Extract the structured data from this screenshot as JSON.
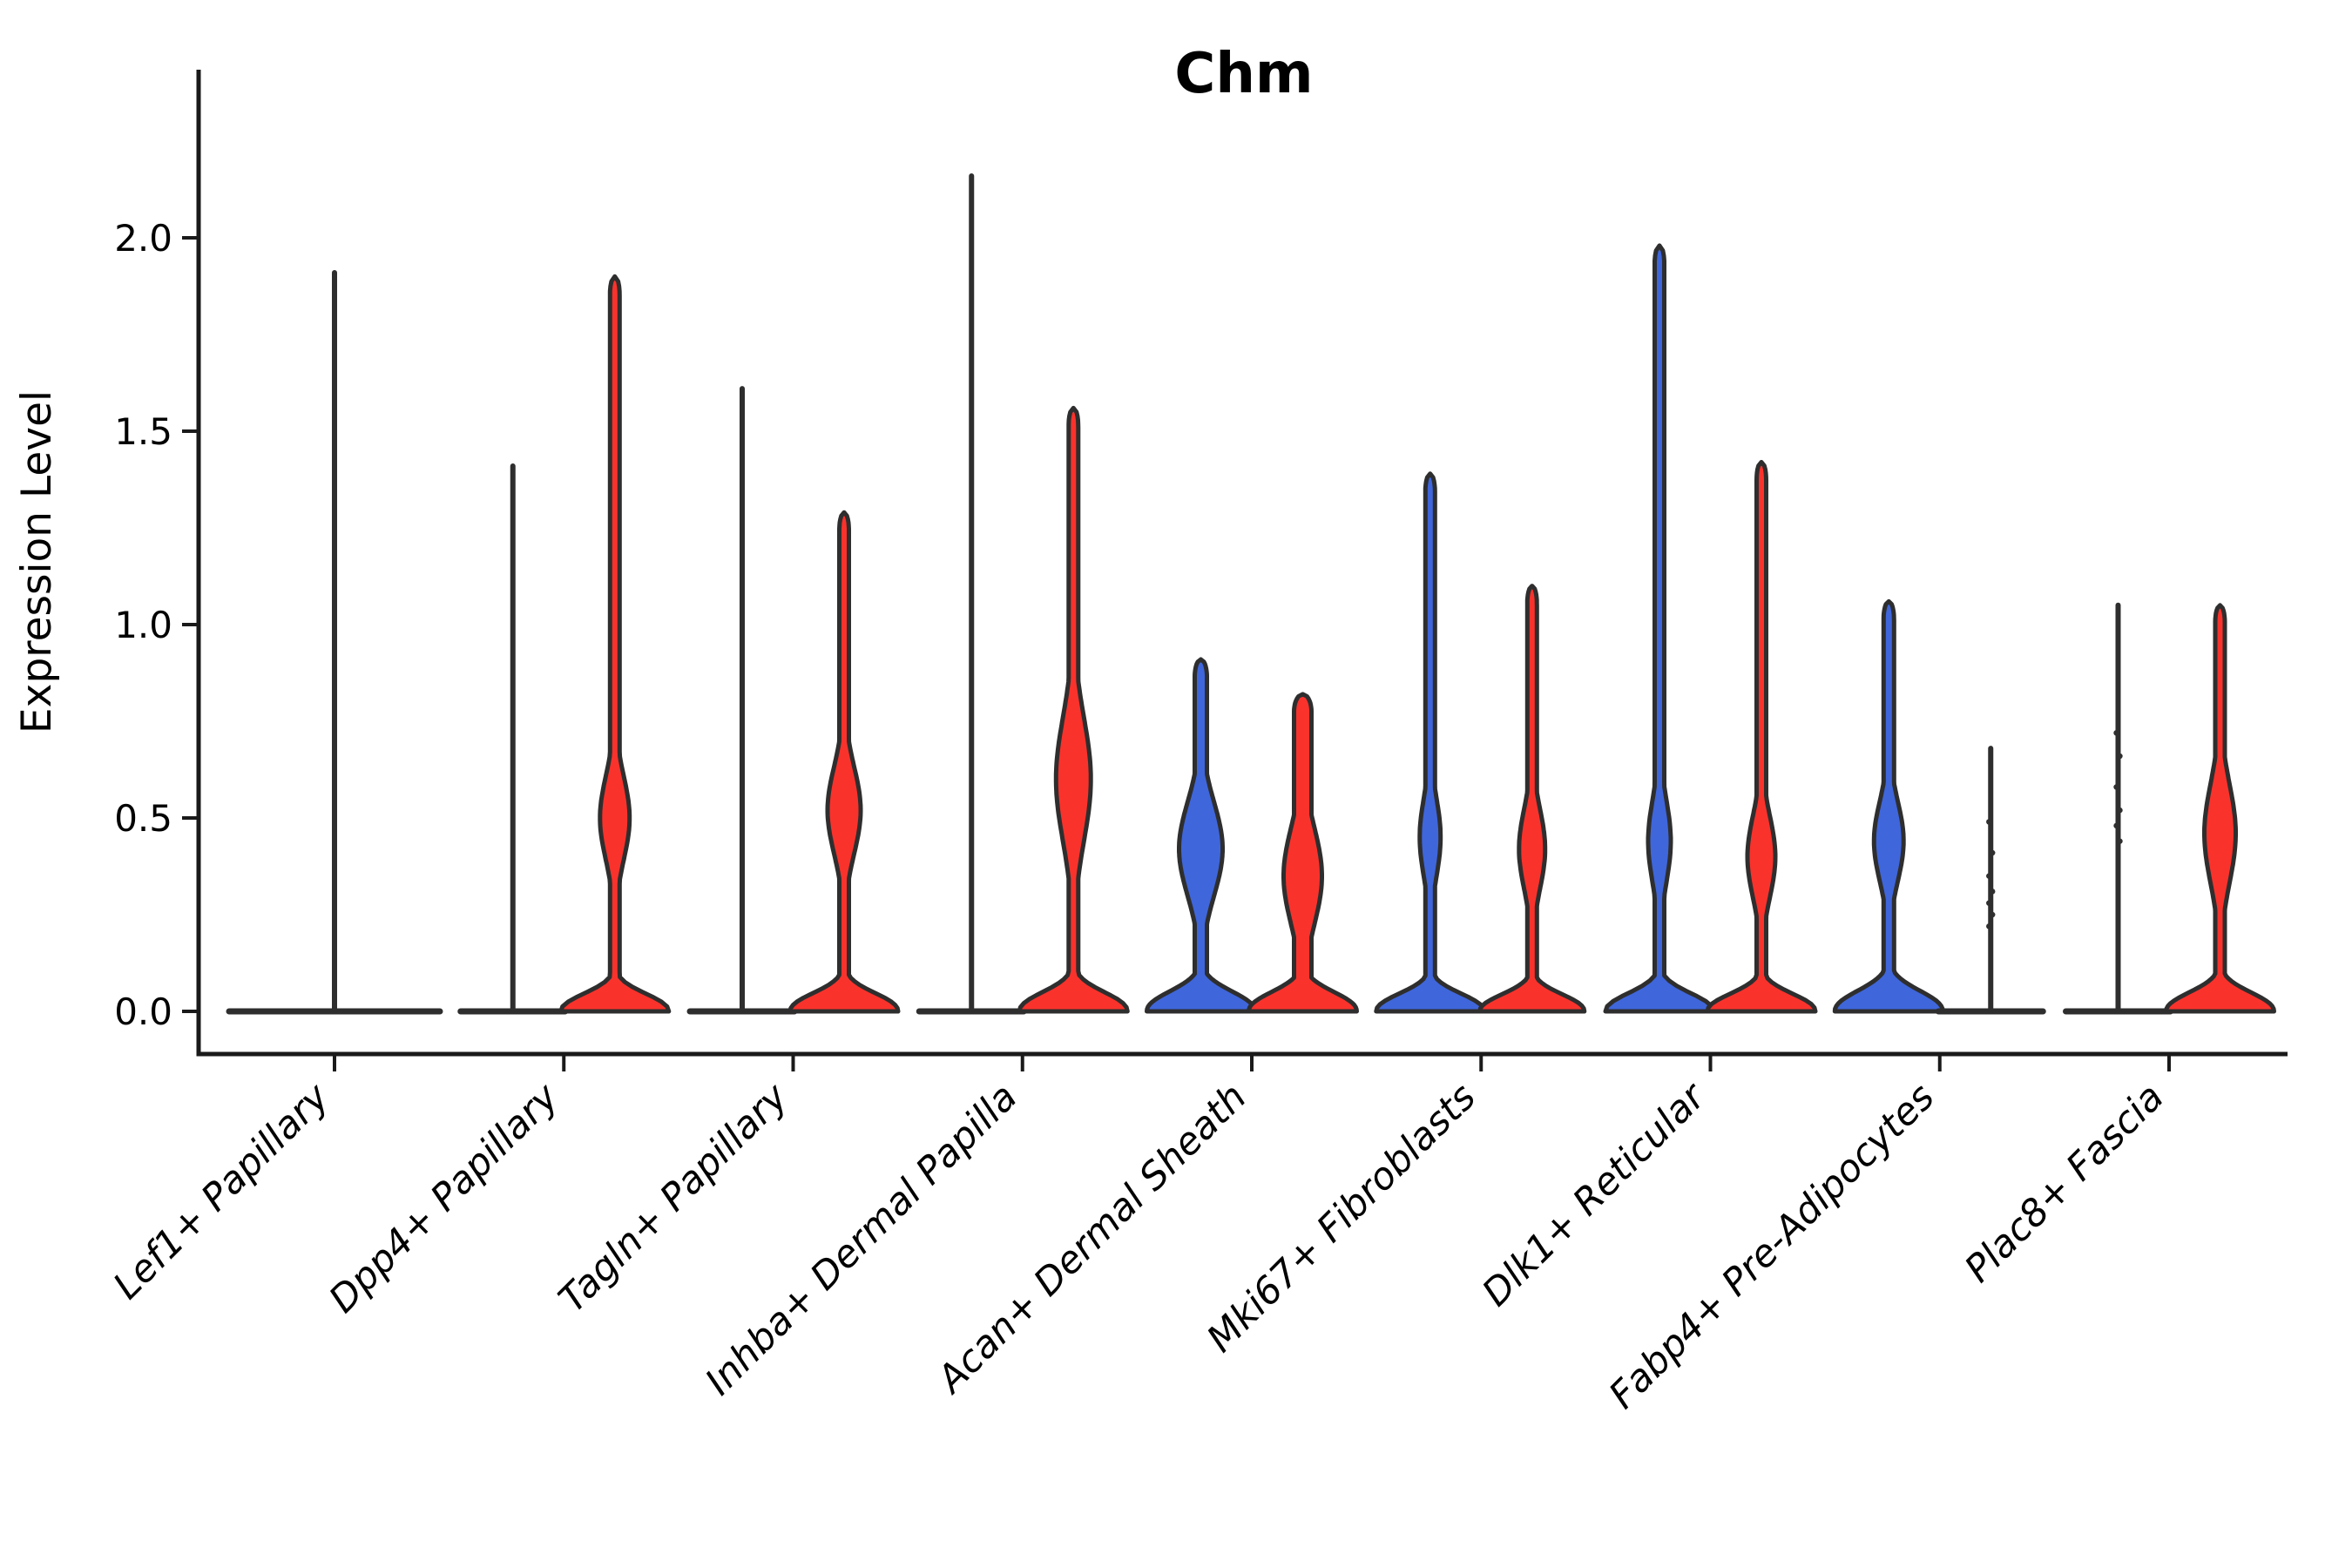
{
  "title": "Chm",
  "y_axis": {
    "label": "Expression Level",
    "tick_labels": [
      "0.0",
      "0.5",
      "1.0",
      "1.5",
      "2.0"
    ],
    "tick_values": [
      0.0,
      0.5,
      1.0,
      1.5,
      2.0
    ]
  },
  "colors": {
    "blue": "#3F66DB",
    "red": "#FA322C",
    "outline": "#2E2E2E",
    "axis": "#1A1A1A",
    "text": "#000000"
  },
  "chart_data": {
    "type": "violin",
    "title": "Chm",
    "xlabel": "",
    "ylabel": "Expression Level",
    "ylim": [
      -0.11,
      2.45
    ],
    "grid": false,
    "legend": "none",
    "categories": [
      "Lef1+ Papillary",
      "Dpp4+ Papillary",
      "Tagln+ Papillary",
      "Inhba+ Dermal Papilla",
      "Acan+ Dermal Sheath",
      "Mki67+ Fibroblasts",
      "Dlk1+ Reticular",
      "Fabp4+ Pre-Adipocytes",
      "Plac8+ Fascia"
    ],
    "groups": [
      {
        "label": "Lef1+ Papillary",
        "violins": [
          {
            "hue": "single",
            "type": "line",
            "max": 1.91,
            "offset": 0,
            "base_halfwidth": 121,
            "dots": []
          }
        ]
      },
      {
        "label": "Dpp4+ Papillary",
        "violins": [
          {
            "hue": "blue",
            "type": "line",
            "max": 1.41,
            "offset": -58.5,
            "base_halfwidth": 60,
            "dots": []
          },
          {
            "hue": "red",
            "type": "full",
            "max": 1.9,
            "offset": 58.5,
            "base_halfwidth": 62,
            "base_sigma": 0.06,
            "stem": 5.5,
            "bulge": {
              "peak": 0.5,
              "lo": 0.27,
              "hi": 0.76,
              "halfwidth": 17
            }
          }
        ]
      },
      {
        "label": "Tagln+ Papillary",
        "violins": [
          {
            "hue": "blue",
            "type": "line",
            "max": 1.61,
            "offset": -58.5,
            "base_halfwidth": 60,
            "dots": []
          },
          {
            "hue": "red",
            "type": "full",
            "max": 1.29,
            "offset": 58.5,
            "base_halfwidth": 62,
            "base_sigma": 0.062,
            "stem": 5.5,
            "bulge": {
              "peak": 0.52,
              "lo": 0.27,
              "hi": 0.78,
              "halfwidth": 19
            }
          }
        ]
      },
      {
        "label": "Inhba+ Dermal Papilla",
        "violins": [
          {
            "hue": "blue",
            "type": "line",
            "max": 2.16,
            "offset": -58.5,
            "base_halfwidth": 60,
            "dots": []
          },
          {
            "hue": "red",
            "type": "full",
            "max": 1.56,
            "offset": 58.5,
            "base_halfwidth": 62,
            "base_sigma": 0.065,
            "stem": 5.5,
            "bulge": {
              "peak": 0.6,
              "lo": 0.28,
              "hi": 1.0,
              "halfwidth": 20
            }
          }
        ]
      },
      {
        "label": "Acan+ Dermal Sheath",
        "violins": [
          {
            "hue": "blue",
            "type": "full",
            "max": 0.91,
            "offset": -58.5,
            "base_halfwidth": 62,
            "base_sigma": 0.068,
            "stem": 7,
            "bulge": {
              "peak": 0.42,
              "lo": 0.13,
              "hi": 0.68,
              "halfwidth": 25
            }
          },
          {
            "hue": "red",
            "type": "full",
            "max": 0.82,
            "offset": 58.5,
            "base_halfwidth": 62,
            "base_sigma": 0.066,
            "stem": 10,
            "bulge": {
              "peak": 0.35,
              "lo": 0.05,
              "hi": 0.62,
              "halfwidth": 22
            }
          }
        ]
      },
      {
        "label": "Mki67+ Fibroblasts",
        "violins": [
          {
            "hue": "blue",
            "type": "full",
            "max": 1.39,
            "offset": -58.5,
            "base_halfwidth": 62,
            "base_sigma": 0.06,
            "stem": 5.5,
            "bulge": {
              "peak": 0.45,
              "lo": 0.2,
              "hi": 0.66,
              "halfwidth": 12
            }
          },
          {
            "hue": "red",
            "type": "full",
            "max": 1.1,
            "offset": 58.5,
            "base_halfwidth": 60,
            "base_sigma": 0.058,
            "stem": 5.5,
            "bulge": {
              "peak": 0.42,
              "lo": 0.17,
              "hi": 0.64,
              "halfwidth": 15
            }
          }
        ]
      },
      {
        "label": "Dlk1+ Reticular",
        "violins": [
          {
            "hue": "blue",
            "type": "full",
            "max": 1.98,
            "offset": -58.5,
            "base_halfwidth": 62,
            "base_sigma": 0.062,
            "stem": 5.5,
            "bulge": {
              "peak": 0.44,
              "lo": 0.18,
              "hi": 0.67,
              "halfwidth": 13
            }
          },
          {
            "hue": "red",
            "type": "full",
            "max": 1.42,
            "offset": 58.5,
            "base_halfwidth": 62,
            "base_sigma": 0.06,
            "stem": 5.5,
            "bulge": {
              "peak": 0.4,
              "lo": 0.15,
              "hi": 0.63,
              "halfwidth": 16
            }
          }
        ]
      },
      {
        "label": "Fabp4+ Pre-Adipocytes",
        "violins": [
          {
            "hue": "blue",
            "type": "full",
            "max": 1.06,
            "offset": -58.5,
            "base_halfwidth": 62,
            "base_sigma": 0.07,
            "stem": 6,
            "bulge": {
              "peak": 0.44,
              "lo": 0.15,
              "hi": 0.62,
              "halfwidth": 17
            }
          },
          {
            "hue": "red",
            "type": "line",
            "max": 0.68,
            "offset": 58.5,
            "base_halfwidth": 60,
            "dots": [
              0.49,
              0.41,
              0.35,
              0.31,
              0.28,
              0.25,
              0.22
            ]
          }
        ]
      },
      {
        "label": "Plac8+ Fascia",
        "violins": [
          {
            "hue": "blue",
            "type": "line",
            "max": 1.05,
            "offset": -58.5,
            "base_halfwidth": 60,
            "dots": [
              0.72,
              0.66,
              0.58,
              0.52,
              0.48,
              0.44
            ]
          },
          {
            "hue": "red",
            "type": "full",
            "max": 1.05,
            "offset": 58.5,
            "base_halfwidth": 62,
            "base_sigma": 0.064,
            "stem": 5.5,
            "bulge": {
              "peak": 0.46,
              "lo": 0.18,
              "hi": 0.76,
              "halfwidth": 18
            }
          }
        ]
      }
    ]
  }
}
